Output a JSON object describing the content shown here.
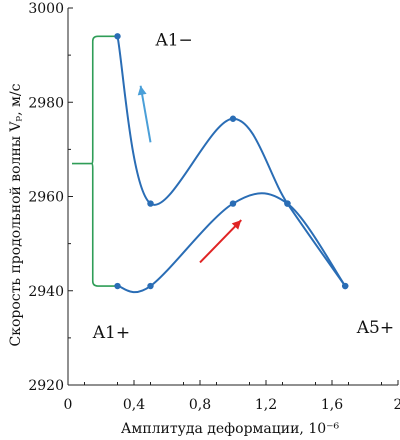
{
  "chart_data": {
    "type": "line",
    "xlabel": "Амплитуда деформации, 10⁻⁶",
    "ylabel": "Скорость продольной волны Vₚ, м/с",
    "xlim": [
      0,
      2
    ],
    "ylim": [
      2920,
      3000
    ],
    "x_ticks": [
      "0",
      "0,4",
      "0,8",
      "1,2",
      "1,6",
      "2"
    ],
    "y_ticks": [
      "2920",
      "2940",
      "2960",
      "2980",
      "3000"
    ],
    "colors": {
      "curve": "#2a6db5",
      "arrow_up": "#4a9fd8",
      "arrow_down": "#e02424",
      "bracket": "#2f9d57",
      "axis": "#222222"
    },
    "series": [
      {
        "points": [
          [
            0.3,
            2994
          ],
          [
            0.5,
            2958.5
          ],
          [
            1.0,
            2976.5
          ],
          [
            1.33,
            2958.5
          ],
          [
            1.68,
            2941
          ]
        ]
      },
      {
        "points": [
          [
            0.3,
            2941
          ],
          [
            0.5,
            2941
          ],
          [
            1.0,
            2958.5
          ],
          [
            1.33,
            2958.5
          ],
          [
            1.68,
            2941
          ]
        ]
      }
    ],
    "annotations": [
      {
        "text": "A1−",
        "x": 0.53,
        "y": 2992
      },
      {
        "text": "A1+",
        "x": 0.15,
        "y": 2930
      },
      {
        "text": "A5+",
        "x": 1.75,
        "y": 2931
      }
    ],
    "arrows": [
      {
        "from": [
          0.5,
          2971.5
        ],
        "to": [
          0.44,
          2983.5
        ],
        "color_key": "arrow_up"
      },
      {
        "from": [
          0.8,
          2946
        ],
        "to": [
          1.05,
          2955
        ],
        "color_key": "arrow_down"
      }
    ],
    "bracket": {
      "x": 0.15,
      "top": 2994,
      "bottom": 2941,
      "mid": 2967
    }
  }
}
